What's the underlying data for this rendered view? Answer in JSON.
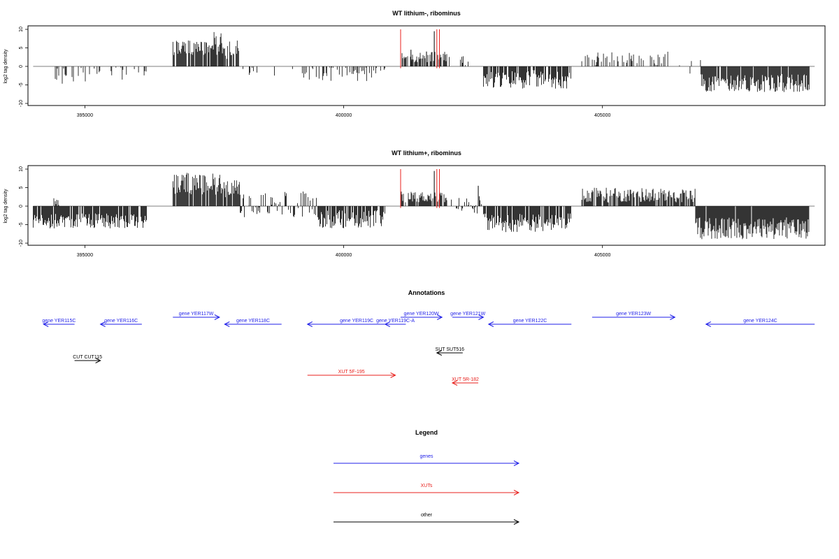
{
  "chart_data": [
    {
      "type": "bar",
      "title": "WT lithium-, ribominus",
      "xlabel": "",
      "ylabel": "log2 tag density",
      "xlim": [
        393900,
        409300
      ],
      "ylim": [
        -10,
        10
      ],
      "xticks": [
        395000,
        400000,
        405000
      ],
      "xtick_labels": [
        "395000",
        "400000",
        "405000"
      ],
      "yticks": [
        10,
        5,
        0,
        -5,
        -10
      ],
      "ytick_labels": [
        "10",
        "5",
        "0",
        "-5",
        "-10"
      ],
      "markers": [
        401100,
        401800,
        401850
      ],
      "marker_color": "#e8201c",
      "segments": [
        {
          "start": 394200,
          "end": 394400,
          "density": 0.1,
          "min": -4,
          "max": 0
        },
        {
          "start": 394400,
          "end": 395100,
          "density": 0.3,
          "min": -5,
          "max": 0
        },
        {
          "start": 395100,
          "end": 395900,
          "density": 0.18,
          "min": -4,
          "max": 0
        },
        {
          "start": 395900,
          "end": 396200,
          "density": 0.2,
          "min": -3,
          "max": 0
        },
        {
          "start": 396700,
          "end": 397400,
          "density": 0.9,
          "min": 3,
          "max": 7
        },
        {
          "start": 397400,
          "end": 397700,
          "density": 0.95,
          "min": 3,
          "max": 9.5
        },
        {
          "start": 397700,
          "end": 398000,
          "density": 0.7,
          "min": 2,
          "max": 7
        },
        {
          "start": 398000,
          "end": 398700,
          "density": 0.12,
          "min": -3,
          "max": 0
        },
        {
          "start": 398700,
          "end": 399100,
          "density": 0.1,
          "min": -3,
          "max": 0
        },
        {
          "start": 399200,
          "end": 400800,
          "density": 0.25,
          "min": -4,
          "max": 0
        },
        {
          "start": 401100,
          "end": 402000,
          "density": 0.75,
          "min": 1,
          "max": 4
        },
        {
          "start": 402000,
          "end": 402700,
          "density": 0.1,
          "min": 0,
          "max": 3
        },
        {
          "start": 402700,
          "end": 404400,
          "density": 0.85,
          "min": -6,
          "max": -1
        },
        {
          "start": 404600,
          "end": 406300,
          "density": 0.3,
          "min": 0,
          "max": 4
        },
        {
          "start": 406300,
          "end": 406900,
          "density": 0.1,
          "min": -2,
          "max": 2
        },
        {
          "start": 406900,
          "end": 409000,
          "density": 0.95,
          "min": -7,
          "max": -2
        }
      ],
      "spikes": [
        {
          "x": 401750,
          "y": 9.5
        },
        {
          "x": 401300,
          "y": 4.5
        },
        {
          "x": 401600,
          "y": 4
        }
      ]
    },
    {
      "type": "bar",
      "title": "WT lithium+, ribominus",
      "xlabel": "",
      "ylabel": "log2 tag density",
      "xlim": [
        393900,
        409300
      ],
      "ylim": [
        -10,
        10
      ],
      "xticks": [
        395000,
        400000,
        405000
      ],
      "xtick_labels": [
        "395000",
        "400000",
        "405000"
      ],
      "yticks": [
        10,
        5,
        0,
        -5,
        -10
      ],
      "ytick_labels": [
        "10",
        "5",
        "0",
        "-5",
        "-10"
      ],
      "markers": [
        401100,
        401800,
        401850
      ],
      "marker_color": "#e8201c",
      "segments": [
        {
          "start": 394000,
          "end": 396200,
          "density": 0.9,
          "min": -6,
          "max": -2
        },
        {
          "start": 394400,
          "end": 394500,
          "density": 0.6,
          "min": 0,
          "max": 3
        },
        {
          "start": 396700,
          "end": 397700,
          "density": 0.95,
          "min": 3,
          "max": 9
        },
        {
          "start": 397700,
          "end": 398000,
          "density": 0.8,
          "min": 2,
          "max": 7
        },
        {
          "start": 398000,
          "end": 399500,
          "density": 0.45,
          "min": -3,
          "max": 4
        },
        {
          "start": 399500,
          "end": 400800,
          "density": 0.85,
          "min": -6,
          "max": -1
        },
        {
          "start": 401100,
          "end": 402000,
          "density": 0.8,
          "min": 1,
          "max": 4
        },
        {
          "start": 402000,
          "end": 402700,
          "density": 0.45,
          "min": -2,
          "max": 3
        },
        {
          "start": 402700,
          "end": 404400,
          "density": 0.9,
          "min": -7,
          "max": -2
        },
        {
          "start": 404600,
          "end": 406800,
          "density": 0.75,
          "min": 1,
          "max": 5
        },
        {
          "start": 406800,
          "end": 409000,
          "density": 0.98,
          "min": -9,
          "max": -3
        }
      ],
      "spikes": [
        {
          "x": 401750,
          "y": 9.5
        },
        {
          "x": 402600,
          "y": 5.5
        }
      ]
    },
    {
      "type": "annotation_track",
      "title": "Annotations",
      "features": [
        {
          "label": "gene YER115C",
          "class": "genes",
          "start": 394800,
          "end": 394200,
          "row": 1
        },
        {
          "label": "gene YER116C",
          "class": "genes",
          "start": 396100,
          "end": 395300,
          "row": 1
        },
        {
          "label": "gene YER117W",
          "class": "genes",
          "start": 396700,
          "end": 397600,
          "row": 0
        },
        {
          "label": "gene YER118C",
          "class": "genes",
          "start": 398800,
          "end": 397700,
          "row": 1
        },
        {
          "label": "gene YER119C",
          "class": "genes",
          "start": 401200,
          "end": 399300,
          "row": 1
        },
        {
          "label": "gene YER119C-A",
          "class": "genes",
          "start": 401200,
          "end": 400800,
          "row": 1
        },
        {
          "label": "gene YER120W",
          "class": "genes",
          "start": 401100,
          "end": 401900,
          "row": 0
        },
        {
          "label": "gene YER121W",
          "class": "genes",
          "start": 402100,
          "end": 402700,
          "row": 0
        },
        {
          "label": "gene YER122C",
          "class": "genes",
          "start": 404400,
          "end": 402800,
          "row": 1
        },
        {
          "label": "gene YER123W",
          "class": "genes",
          "start": 404800,
          "end": 406400,
          "row": 0
        },
        {
          "label": "gene YER124C",
          "class": "genes",
          "start": 409100,
          "end": 407000,
          "row": 1
        },
        {
          "label": "CUT CUT115",
          "class": "other",
          "start": 394800,
          "end": 395300,
          "row": 3
        },
        {
          "label": "SUT SUT516",
          "class": "other",
          "start": 402300,
          "end": 401800,
          "row": 2
        },
        {
          "label": "XUT 5F-195",
          "class": "XUTs",
          "start": 399300,
          "end": 401000,
          "row": 4
        },
        {
          "label": "XUT 5R-182",
          "class": "XUTs",
          "start": 402600,
          "end": 402100,
          "row": 5
        }
      ]
    },
    {
      "type": "legend",
      "title": "Legend",
      "entries": [
        {
          "label": "genes",
          "color": "#1f1fe8"
        },
        {
          "label": "XUTs",
          "color": "#e8201c"
        },
        {
          "label": "other",
          "color": "#000000"
        }
      ]
    }
  ],
  "colors": {
    "genes": "#1f1fe8",
    "XUTs": "#e8201c",
    "other": "#000000"
  }
}
